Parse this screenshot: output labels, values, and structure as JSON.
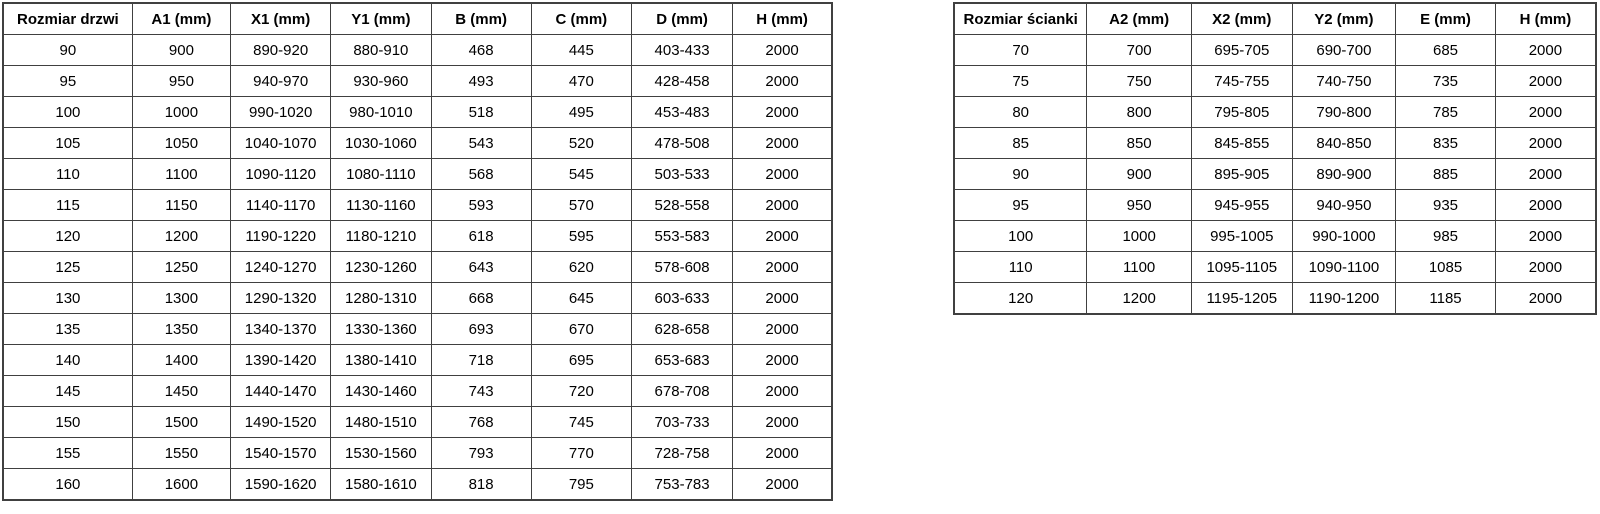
{
  "door_table": {
    "headers": [
      "Rozmiar drzwi",
      "A1 (mm)",
      "X1 (mm)",
      "Y1 (mm)",
      "B (mm)",
      "C (mm)",
      "D (mm)",
      "H (mm)"
    ],
    "rows": [
      [
        "90",
        "900",
        "890-920",
        "880-910",
        "468",
        "445",
        "403-433",
        "2000"
      ],
      [
        "95",
        "950",
        "940-970",
        "930-960",
        "493",
        "470",
        "428-458",
        "2000"
      ],
      [
        "100",
        "1000",
        "990-1020",
        "980-1010",
        "518",
        "495",
        "453-483",
        "2000"
      ],
      [
        "105",
        "1050",
        "1040-1070",
        "1030-1060",
        "543",
        "520",
        "478-508",
        "2000"
      ],
      [
        "110",
        "1100",
        "1090-1120",
        "1080-1110",
        "568",
        "545",
        "503-533",
        "2000"
      ],
      [
        "115",
        "1150",
        "1140-1170",
        "1130-1160",
        "593",
        "570",
        "528-558",
        "2000"
      ],
      [
        "120",
        "1200",
        "1190-1220",
        "1180-1210",
        "618",
        "595",
        "553-583",
        "2000"
      ],
      [
        "125",
        "1250",
        "1240-1270",
        "1230-1260",
        "643",
        "620",
        "578-608",
        "2000"
      ],
      [
        "130",
        "1300",
        "1290-1320",
        "1280-1310",
        "668",
        "645",
        "603-633",
        "2000"
      ],
      [
        "135",
        "1350",
        "1340-1370",
        "1330-1360",
        "693",
        "670",
        "628-658",
        "2000"
      ],
      [
        "140",
        "1400",
        "1390-1420",
        "1380-1410",
        "718",
        "695",
        "653-683",
        "2000"
      ],
      [
        "145",
        "1450",
        "1440-1470",
        "1430-1460",
        "743",
        "720",
        "678-708",
        "2000"
      ],
      [
        "150",
        "1500",
        "1490-1520",
        "1480-1510",
        "768",
        "745",
        "703-733",
        "2000"
      ],
      [
        "155",
        "1550",
        "1540-1570",
        "1530-1560",
        "793",
        "770",
        "728-758",
        "2000"
      ],
      [
        "160",
        "1600",
        "1590-1620",
        "1580-1610",
        "818",
        "795",
        "753-783",
        "2000"
      ]
    ]
  },
  "wall_table": {
    "headers": [
      "Rozmiar ścianki",
      "A2 (mm)",
      "X2 (mm)",
      "Y2 (mm)",
      "E (mm)",
      "H (mm)"
    ],
    "rows": [
      [
        "70",
        "700",
        "695-705",
        "690-700",
        "685",
        "2000"
      ],
      [
        "75",
        "750",
        "745-755",
        "740-750",
        "735",
        "2000"
      ],
      [
        "80",
        "800",
        "795-805",
        "790-800",
        "785",
        "2000"
      ],
      [
        "85",
        "850",
        "845-855",
        "840-850",
        "835",
        "2000"
      ],
      [
        "90",
        "900",
        "895-905",
        "890-900",
        "885",
        "2000"
      ],
      [
        "95",
        "950",
        "945-955",
        "940-950",
        "935",
        "2000"
      ],
      [
        "100",
        "1000",
        "995-1005",
        "990-1000",
        "985",
        "2000"
      ],
      [
        "110",
        "1100",
        "1095-1105",
        "1090-1100",
        "1085",
        "2000"
      ],
      [
        "120",
        "1200",
        "1195-1205",
        "1190-1200",
        "1185",
        "2000"
      ]
    ]
  },
  "colors": {
    "border": "#404040",
    "text": "#000000",
    "background": "#ffffff"
  }
}
